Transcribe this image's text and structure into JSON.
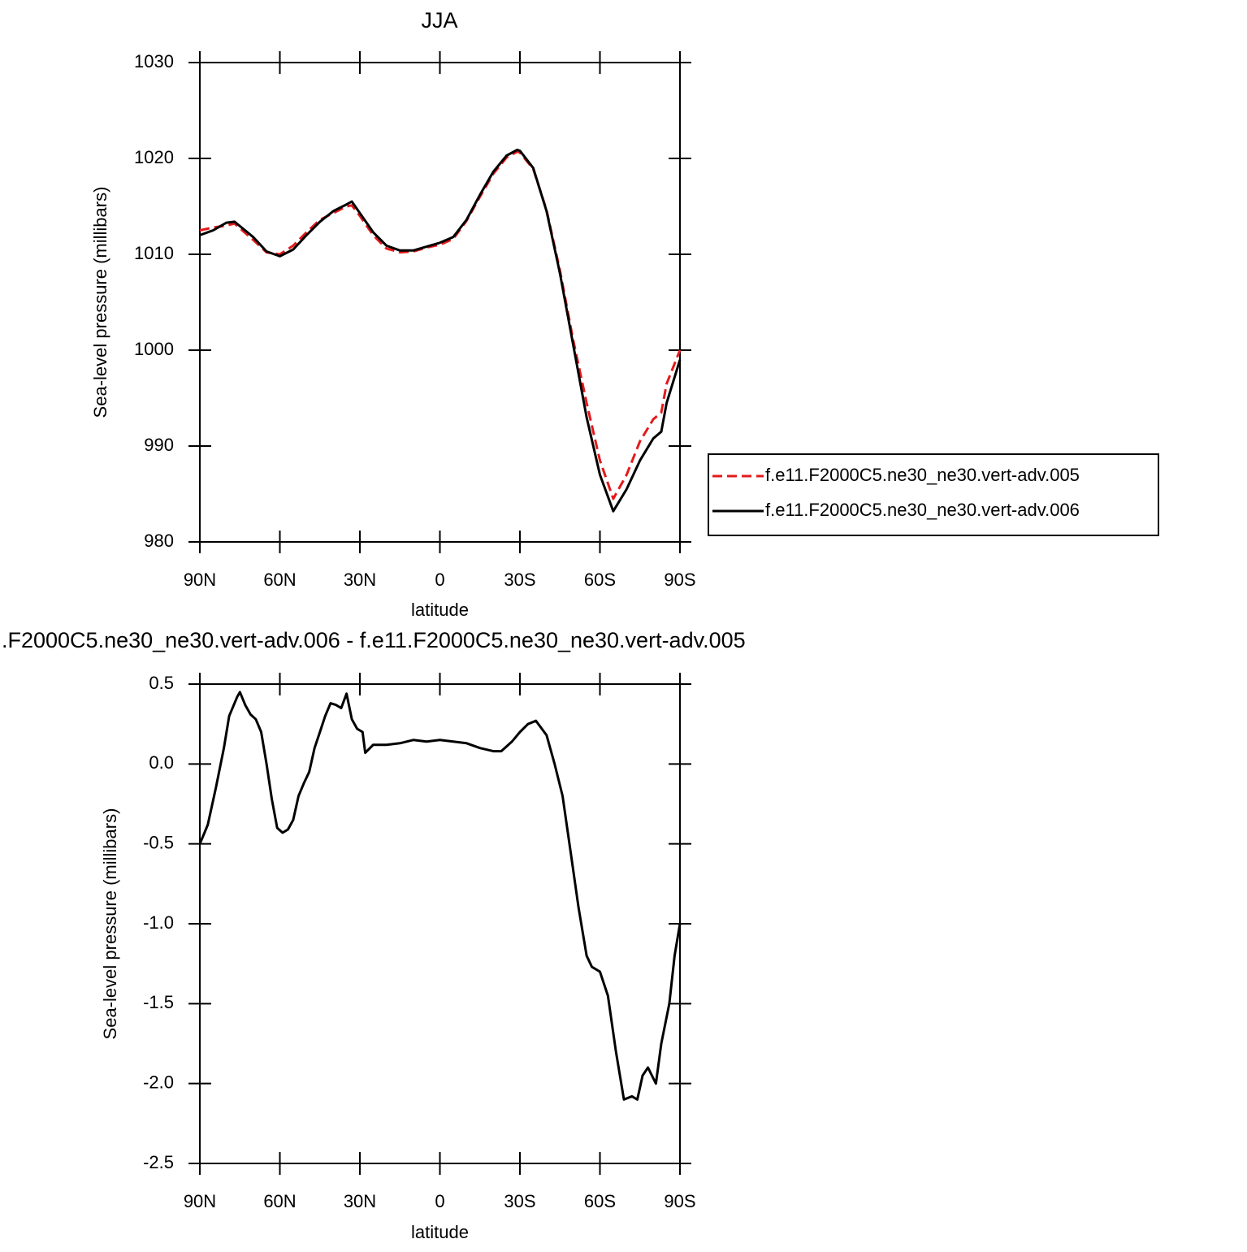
{
  "chart_data": [
    {
      "type": "line",
      "title": "JJA",
      "xlabel": "latitude",
      "ylabel": "Sea-level pressure (millibars)",
      "x": [
        90,
        85,
        80,
        77,
        70,
        65,
        60,
        55,
        50,
        45,
        40,
        35,
        33,
        30,
        25,
        20,
        15,
        10,
        5,
        0,
        -5,
        -10,
        -15,
        -20,
        -25,
        -29,
        -30,
        -35,
        -40,
        -45,
        -50,
        -55,
        -60,
        -65,
        -70,
        -75,
        -80,
        -83,
        -85,
        -90
      ],
      "series": [
        {
          "name": "f.e11.F2000C5.ne30_ne30.vert-adv.005",
          "color": "#e41a1c",
          "line_style": "dashed",
          "values": [
            1012.5,
            1012.8,
            1013.0,
            1013.2,
            1011.5,
            1010.2,
            1010.0,
            1010.9,
            1012.3,
            1013.6,
            1014.3,
            1015.0,
            1015.1,
            1014.0,
            1012.0,
            1010.6,
            1010.2,
            1010.3,
            1010.7,
            1011.0,
            1011.6,
            1013.5,
            1016.0,
            1018.4,
            1020.1,
            1020.7,
            1020.6,
            1018.9,
            1014.6,
            1008.3,
            1001.0,
            994.5,
            988.5,
            984.5,
            987.0,
            990.5,
            992.8,
            993.5,
            996.5,
            1000.0
          ]
        },
        {
          "name": "f.e11.F2000C5.ne30_ne30.vert-adv.006",
          "color": "#000000",
          "line_style": "solid",
          "values": [
            1012.0,
            1012.5,
            1013.3,
            1013.4,
            1011.8,
            1010.3,
            1009.8,
            1010.5,
            1012.0,
            1013.4,
            1014.5,
            1015.2,
            1015.5,
            1014.3,
            1012.3,
            1010.9,
            1010.4,
            1010.4,
            1010.8,
            1011.2,
            1011.8,
            1013.6,
            1016.2,
            1018.6,
            1020.3,
            1020.9,
            1020.8,
            1019.0,
            1014.5,
            1008.0,
            1000.5,
            993.0,
            987.0,
            983.2,
            985.5,
            988.5,
            990.8,
            991.5,
            994.5,
            999.0
          ]
        }
      ],
      "xlim": [
        90,
        -90
      ],
      "xticks": [
        {
          "value": 90,
          "label": "90N"
        },
        {
          "value": 60,
          "label": "60N"
        },
        {
          "value": 30,
          "label": "30N"
        },
        0,
        {
          "value": -30,
          "label": "30S"
        },
        {
          "value": -60,
          "label": "60S"
        },
        {
          "value": -90,
          "label": "90S"
        }
      ],
      "ylim": [
        980,
        1030
      ],
      "yticks": [
        980,
        990,
        1000,
        1010,
        1020,
        1030
      ],
      "legend": "right"
    },
    {
      "type": "line",
      "title": ".F2000C5.ne30_ne30.vert-adv.006 - f.e11.F2000C5.ne30_ne30.vert-adv.005",
      "xlabel": "latitude",
      "ylabel": "Sea-level pressure (millibars)",
      "x": [
        90,
        87,
        84,
        81,
        79,
        76,
        75,
        73,
        71,
        69,
        67,
        65,
        63,
        61,
        59,
        57,
        55,
        53,
        51,
        49,
        47,
        45,
        43,
        41,
        39,
        37,
        35,
        33,
        31,
        29,
        28,
        25,
        20,
        15,
        10,
        5,
        0,
        -5,
        -10,
        -15,
        -20,
        -23,
        -27,
        -30,
        -33,
        -36,
        -40,
        -43,
        -46,
        -49,
        -52,
        -55,
        -57,
        -60,
        -63,
        -66,
        -69,
        -72,
        -74,
        -76,
        -78,
        -81,
        -83,
        -86,
        -88,
        -90
      ],
      "series": [
        {
          "color": "#000000",
          "line_style": "solid",
          "values": [
            -0.5,
            -0.38,
            -0.15,
            0.1,
            0.3,
            0.42,
            0.45,
            0.37,
            0.31,
            0.28,
            0.2,
            0.0,
            -0.22,
            -0.4,
            -0.43,
            -0.41,
            -0.35,
            -0.2,
            -0.12,
            -0.05,
            0.1,
            0.2,
            0.3,
            0.38,
            0.37,
            0.35,
            0.44,
            0.28,
            0.22,
            0.2,
            0.07,
            0.12,
            0.12,
            0.13,
            0.15,
            0.14,
            0.15,
            0.14,
            0.13,
            0.1,
            0.08,
            0.08,
            0.14,
            0.2,
            0.25,
            0.27,
            0.18,
            0.0,
            -0.2,
            -0.55,
            -0.9,
            -1.2,
            -1.27,
            -1.3,
            -1.45,
            -1.8,
            -2.1,
            -2.08,
            -2.1,
            -1.95,
            -1.9,
            -2.0,
            -1.75,
            -1.5,
            -1.2,
            -1.0
          ]
        }
      ],
      "xlim": [
        90,
        -90
      ],
      "xticks": [
        {
          "value": 90,
          "label": "90N"
        },
        {
          "value": 60,
          "label": "60N"
        },
        {
          "value": 30,
          "label": "30N"
        },
        0,
        {
          "value": -30,
          "label": "30S"
        },
        {
          "value": -60,
          "label": "60S"
        },
        {
          "value": -90,
          "label": "90S"
        }
      ],
      "ylim": [
        -2.5,
        0.5
      ],
      "yticks": [
        -2.5,
        {
          "value": -2,
          "label": "-2.0"
        },
        -1.5,
        {
          "value": -1,
          "label": "-1.0"
        },
        -0.5,
        {
          "value": 0,
          "label": "0.0"
        },
        0.5
      ]
    }
  ]
}
